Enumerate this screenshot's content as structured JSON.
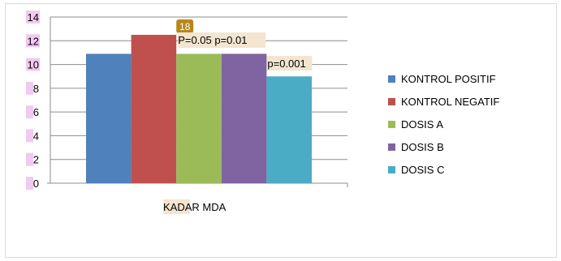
{
  "chart_data": {
    "type": "bar",
    "title": "",
    "xlabel": "",
    "ylabel": "",
    "ylim": [
      0,
      14
    ],
    "yticks": [
      0,
      2,
      4,
      6,
      8,
      10,
      12,
      14
    ],
    "grid": true,
    "legend_position": "right",
    "categories": [
      "KADAR MDA"
    ],
    "category_highlight": "KADAR",
    "category_rest": " MDA",
    "series": [
      {
        "name": "KONTROL POSITIF",
        "values": [
          10.9
        ],
        "color": "#4f81bd"
      },
      {
        "name": "KONTROL NEGATIF",
        "values": [
          12.5
        ],
        "color": "#c0504d"
      },
      {
        "name": "DOSIS A",
        "values": [
          10.9
        ],
        "color": "#9bbb59"
      },
      {
        "name": "DOSIS B",
        "values": [
          10.9
        ],
        "color": "#8064a2"
      },
      {
        "name": "DOSIS C",
        "values": [
          9.0
        ],
        "color": "#4bacc6"
      }
    ],
    "annotations": [
      {
        "text": "18",
        "style": "badge"
      },
      {
        "text": "P=0.05 p=0.01",
        "style": "highlight"
      },
      {
        "text": "p=0.001",
        "style": "highlight"
      }
    ],
    "colors": {
      "gridline": "#8c8c8c",
      "tick_highlight": "#f2c9ef",
      "text_highlight": "#f3e5cf",
      "badge_fill": "#b8861b",
      "badge_text": "#ffffff"
    }
  }
}
